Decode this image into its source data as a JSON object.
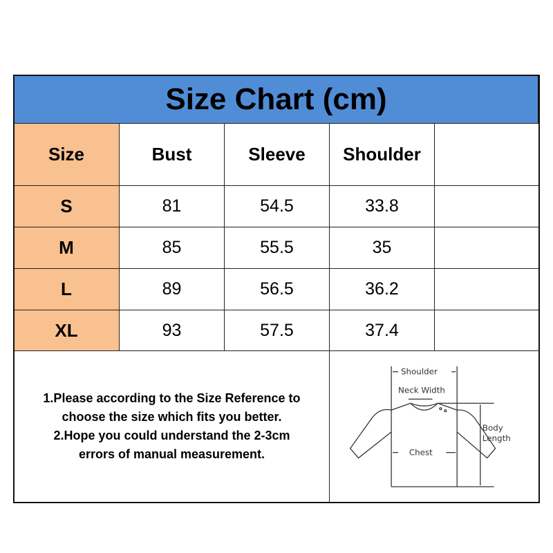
{
  "title": "Size Chart (cm)",
  "headers": [
    "Size",
    "Bust",
    "Sleeve",
    "Shoulder",
    ""
  ],
  "rows": [
    {
      "size": "S",
      "bust": "81",
      "sleeve": "54.5",
      "shoulder": "33.8"
    },
    {
      "size": "M",
      "bust": "85",
      "sleeve": "55.5",
      "shoulder": "35"
    },
    {
      "size": "L",
      "bust": "89",
      "sleeve": "56.5",
      "shoulder": "36.2"
    },
    {
      "size": "XL",
      "bust": "93",
      "sleeve": "57.5",
      "shoulder": "37.4"
    }
  ],
  "notes": [
    "1.Please according to the Size Reference to",
    "choose the size which fits you better.",
    "2.Hope you could understand the 2-3cm",
    "errors of manual measurement."
  ],
  "diagram": {
    "shoulder": "Shoulder",
    "neck_width": "Neck Width",
    "chest": "Chest",
    "body_length_1": "Body",
    "body_length_2": "Length"
  },
  "colors": {
    "title_bg": "#518dd7",
    "size_col_bg": "#f9c090"
  }
}
